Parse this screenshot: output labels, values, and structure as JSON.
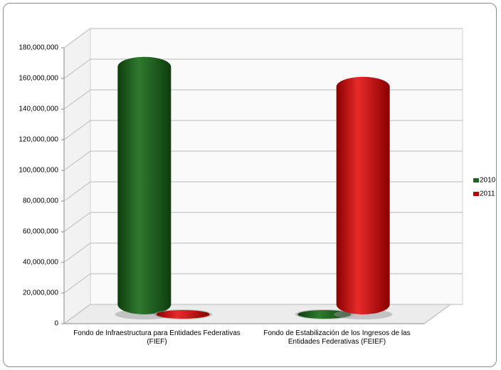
{
  "chart_data": {
    "type": "bar3d",
    "categories": [
      "Fondo de Infraestructura para Entidades Federativas (FIEF)",
      "Fondo de Estabilización de los Ingresos de las Entidades Federativas (FEIEF)"
    ],
    "series": [
      {
        "name": "2010",
        "color": "#1f5f1f",
        "values": [
          168000000,
          0
        ]
      },
      {
        "name": "2011",
        "color": "#c00000",
        "values": [
          0,
          155000000
        ]
      }
    ],
    "ylim": [
      0,
      180000000
    ],
    "yticks": [
      {
        "value": 0,
        "label": "0"
      },
      {
        "value": 20000000,
        "label": "20,000,000"
      },
      {
        "value": 40000000,
        "label": "40,000,000"
      },
      {
        "value": 60000000,
        "label": "60,000,000"
      },
      {
        "value": 80000000,
        "label": "80,000,000"
      },
      {
        "value": 100000000,
        "label": "100,000,000"
      },
      {
        "value": 120000000,
        "label": "120,000,000"
      },
      {
        "value": 140000000,
        "label": "140,000,000"
      },
      {
        "value": 160000000,
        "label": "160,000,000"
      },
      {
        "value": 180000000,
        "label": "180,000,000"
      }
    ],
    "grid": true,
    "legend": "right"
  }
}
